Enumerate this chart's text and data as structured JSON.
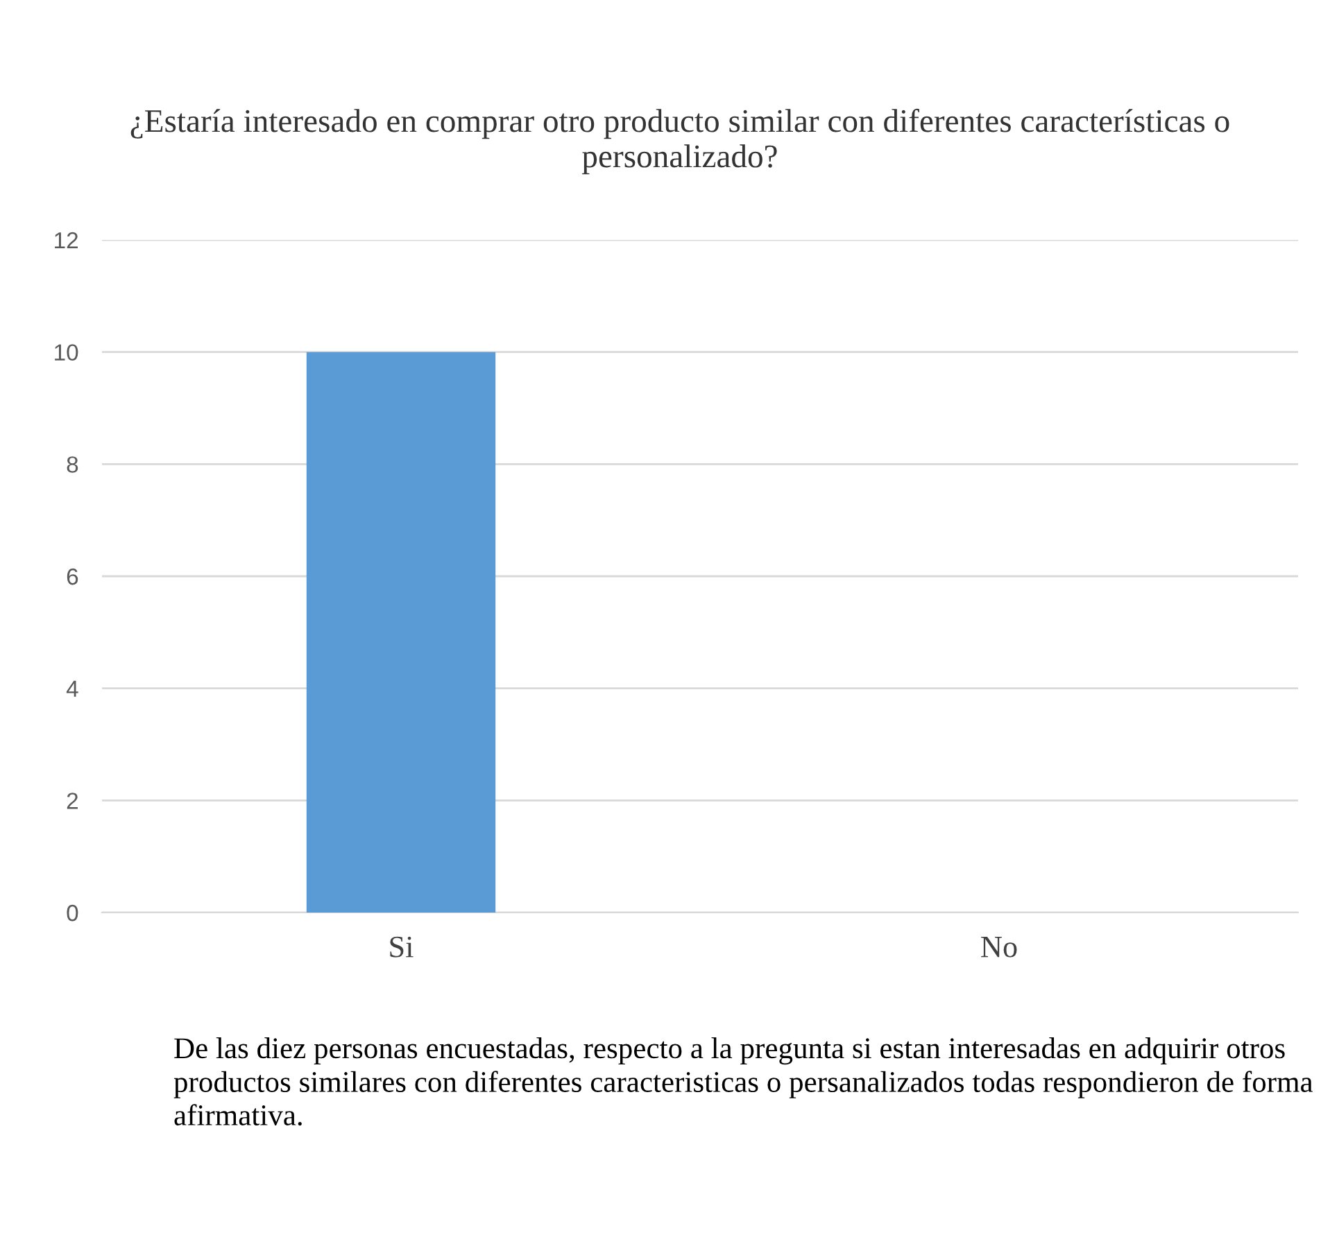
{
  "chart_data": {
    "type": "bar",
    "title": "¿Estaría interesado en comprar otro producto similar con diferentes características o personalizado?",
    "categories": [
      "Si",
      "No"
    ],
    "values": [
      10,
      0
    ],
    "color": "#5b9bd5",
    "ylim": [
      0,
      12
    ],
    "yticks": [
      0,
      2,
      4,
      6,
      8,
      10,
      12
    ],
    "grid": "y",
    "legend": false,
    "annotations": [
      "De las diez personas encuestadas, respecto a la pregunta si estan interesadas en adquirir otros productos similares con diferentes caracteristicas o persanalizados todas respondieron de forma afirmativa."
    ]
  }
}
